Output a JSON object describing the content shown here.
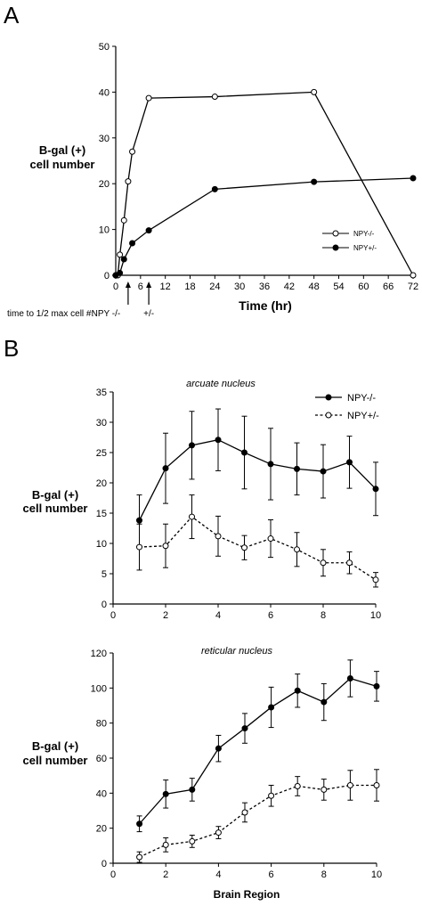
{
  "panel_a_label": "A",
  "panel_b_label": "B",
  "chart_data": [
    {
      "type": "line",
      "panel": "A",
      "ylabel_line1": "B-gal (+)",
      "ylabel_line2": "cell number",
      "xlabel": "Time (hr)",
      "xlim": [
        0,
        72
      ],
      "ylim": [
        0,
        50
      ],
      "xticks": [
        0,
        6,
        12,
        18,
        24,
        30,
        36,
        42,
        48,
        54,
        60,
        66,
        72
      ],
      "yticks": [
        0,
        10,
        20,
        30,
        40,
        50
      ],
      "legend_position": "bottom-right",
      "series": [
        {
          "name": "NPY-/-",
          "marker": "open",
          "x": [
            0,
            0.5,
            1,
            2,
            3,
            4,
            8,
            24,
            48,
            72
          ],
          "y": [
            0,
            0,
            4.5,
            12,
            20.5,
            27,
            38.7,
            39,
            40,
            0
          ]
        },
        {
          "name": "NPY+/-",
          "marker": "filled",
          "x": [
            0,
            1,
            2,
            4,
            8,
            24,
            48,
            72
          ],
          "y": [
            0,
            0.5,
            3.5,
            7,
            9.8,
            18.8,
            20.4,
            21.2
          ]
        }
      ],
      "annotation": {
        "text": "time to 1/2 max cell #:",
        "arrows": [
          {
            "label": "NPY -/-",
            "x": 3
          },
          {
            "label": "+/-",
            "x": 8
          }
        ]
      }
    },
    {
      "type": "line",
      "panel": "B-top",
      "subtitle": "arcuate nucleus",
      "ylabel_line1": "B-gal (+)",
      "ylabel_line2": "cell number",
      "xlabel": "",
      "xlim": [
        0,
        10
      ],
      "ylim": [
        0,
        35
      ],
      "xticks": [
        0,
        2,
        4,
        6,
        8,
        10
      ],
      "yticks": [
        0,
        5,
        10,
        15,
        20,
        25,
        30,
        35
      ],
      "legend_position": "top-right",
      "series": [
        {
          "name": "NPY-/-",
          "marker": "filled",
          "line": "solid",
          "x": [
            1,
            2,
            3,
            4,
            5,
            6,
            7,
            8,
            9,
            10
          ],
          "y": [
            13.8,
            22.4,
            26.2,
            27.1,
            25.0,
            23.1,
            22.3,
            21.9,
            23.4,
            19.0
          ],
          "err": [
            4.2,
            5.8,
            5.6,
            5.1,
            6.0,
            5.9,
            4.3,
            4.4,
            4.3,
            4.4
          ]
        },
        {
          "name": "NPY+/-",
          "marker": "open",
          "line": "dashed",
          "x": [
            1,
            2,
            3,
            4,
            5,
            6,
            7,
            8,
            9,
            10
          ],
          "y": [
            9.4,
            9.6,
            14.4,
            11.2,
            9.3,
            10.8,
            9.0,
            6.8,
            6.8,
            4.0
          ],
          "err": [
            3.8,
            3.6,
            3.6,
            3.3,
            2.0,
            3.1,
            2.8,
            2.2,
            1.8,
            1.2
          ]
        }
      ]
    },
    {
      "type": "line",
      "panel": "B-bottom",
      "subtitle": "reticular nucleus",
      "ylabel_line1": "B-gal (+)",
      "ylabel_line2": "cell number",
      "xlabel": "Brain Region",
      "xlim": [
        0,
        10
      ],
      "ylim": [
        0,
        120
      ],
      "xticks": [
        0,
        2,
        4,
        6,
        8,
        10
      ],
      "yticks": [
        0,
        20,
        40,
        60,
        80,
        100,
        120
      ],
      "series": [
        {
          "name": "NPY-/-",
          "marker": "filled",
          "line": "solid",
          "x": [
            1,
            2,
            3,
            4,
            5,
            6,
            7,
            8,
            9,
            10
          ],
          "y": [
            22.5,
            39.5,
            42.0,
            65.5,
            77.0,
            89.0,
            98.5,
            92.0,
            105.5,
            101.0
          ],
          "err": [
            4.5,
            8.0,
            6.5,
            7.5,
            8.5,
            11.5,
            9.5,
            10.5,
            10.5,
            8.5
          ]
        },
        {
          "name": "NPY+/-",
          "marker": "open",
          "line": "dashed",
          "x": [
            1,
            2,
            3,
            4,
            5,
            6,
            7,
            8,
            9,
            10
          ],
          "y": [
            3.5,
            10.5,
            12.5,
            17.5,
            29.0,
            38.5,
            44.0,
            42.0,
            44.5,
            44.5
          ],
          "err": [
            3.0,
            4.0,
            3.5,
            3.5,
            5.5,
            6.0,
            5.5,
            6.0,
            8.5,
            9.0
          ]
        }
      ]
    }
  ]
}
